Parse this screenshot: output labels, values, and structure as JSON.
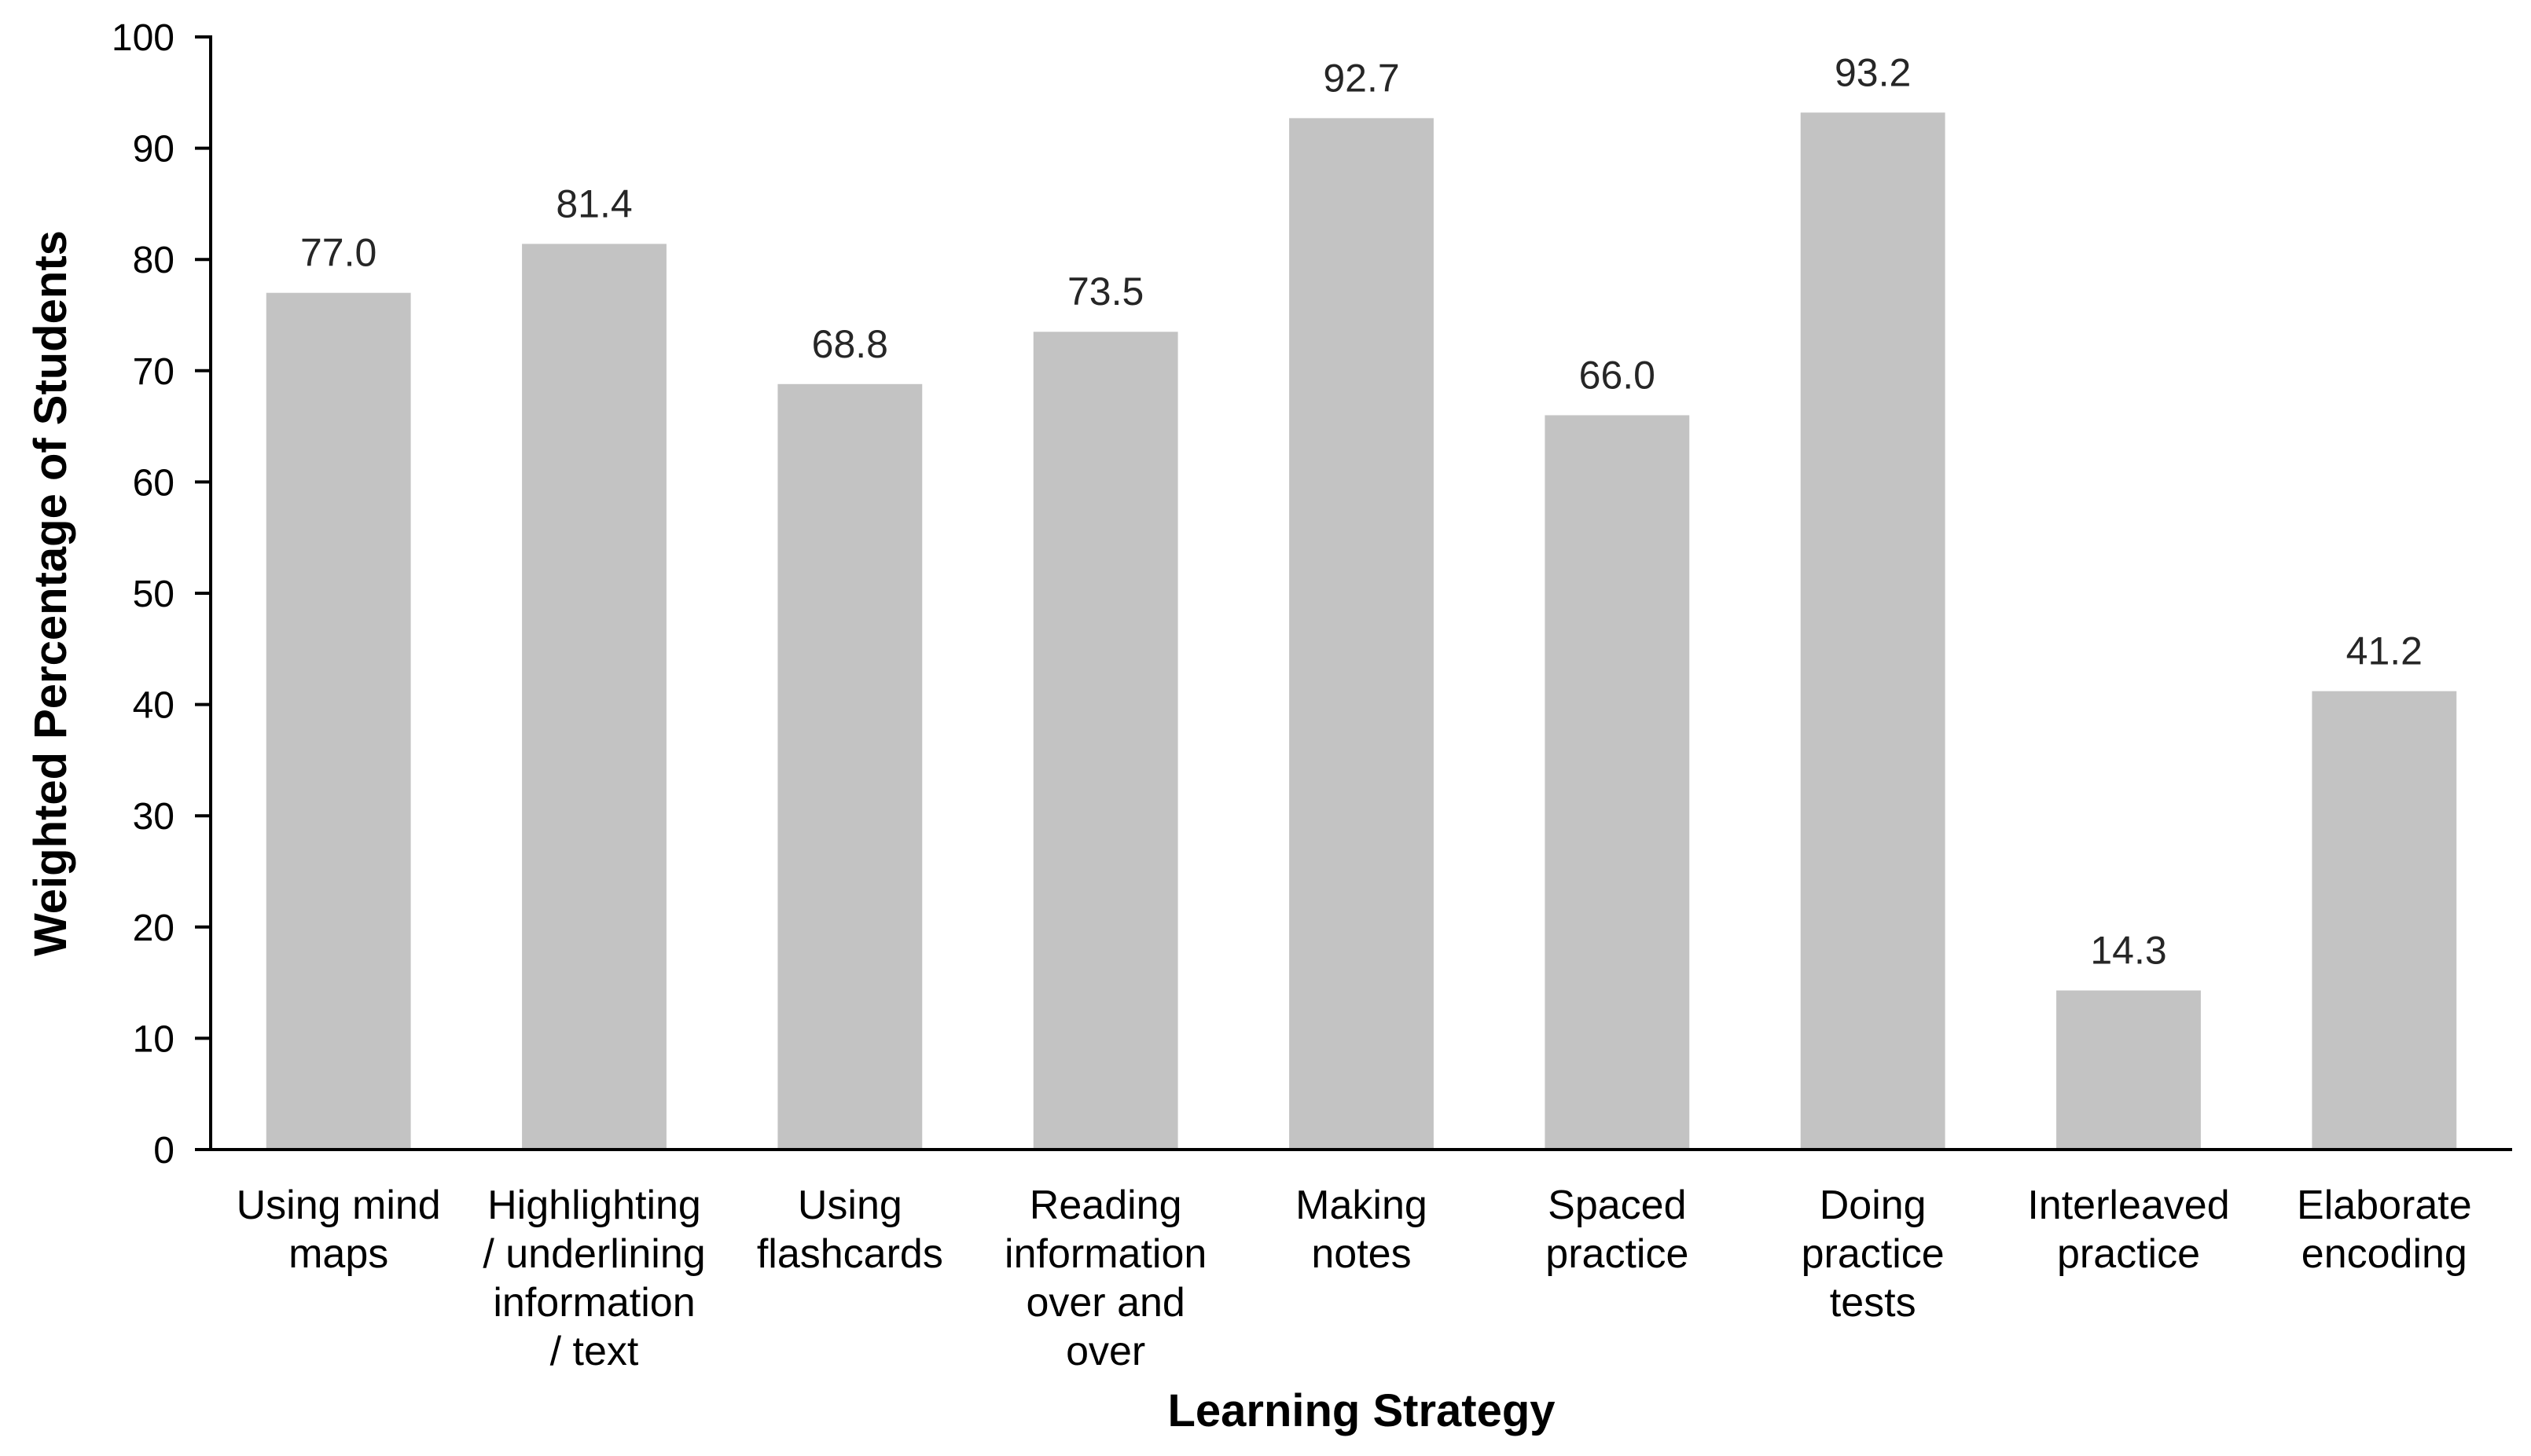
{
  "chart_data": {
    "type": "bar",
    "title": "",
    "xlabel": "Learning Strategy",
    "ylabel": "Weighted Percentage of Students",
    "ylim": [
      0,
      100
    ],
    "yticks": [
      0,
      10,
      20,
      30,
      40,
      50,
      60,
      70,
      80,
      90,
      100
    ],
    "grid": false,
    "legend": "none",
    "bar_color": "#c3c3c3",
    "categories": [
      [
        "Using mind",
        "maps"
      ],
      [
        "Highlighting",
        "/ underlining",
        "information",
        "/ text"
      ],
      [
        "Using",
        "flashcards"
      ],
      [
        "Reading",
        "information",
        "over and",
        "over"
      ],
      [
        "Making",
        "notes"
      ],
      [
        "Spaced",
        "practice"
      ],
      [
        "Doing",
        "practice",
        "tests"
      ],
      [
        "Interleaved",
        "practice"
      ],
      [
        "Elaborate",
        "encoding"
      ]
    ],
    "values": [
      77.0,
      81.4,
      68.8,
      73.5,
      92.7,
      66.0,
      93.2,
      14.3,
      41.2
    ],
    "value_labels": [
      "77.0",
      "81.4",
      "68.8",
      "73.5",
      "92.7",
      "66.0",
      "93.2",
      "14.3",
      "41.2"
    ]
  }
}
